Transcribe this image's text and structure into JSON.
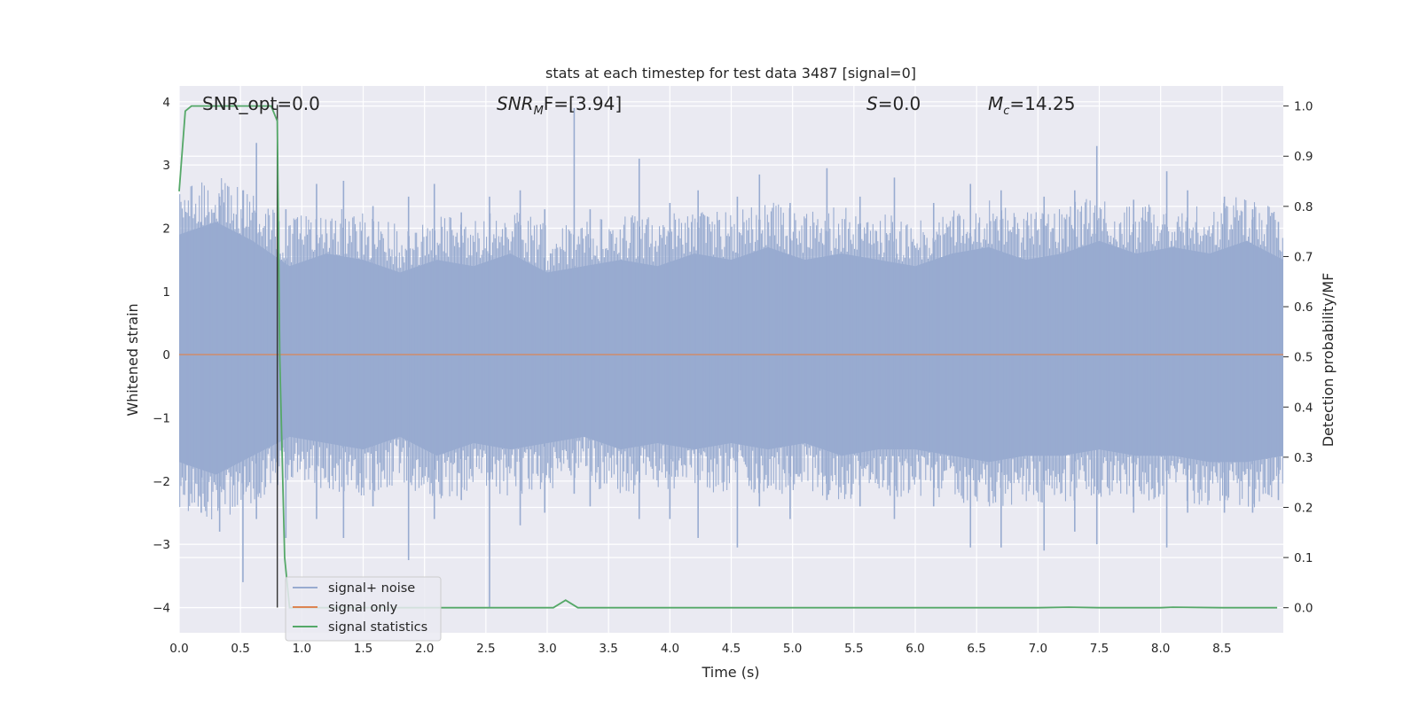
{
  "chart_data": {
    "type": "line",
    "title": "stats at each timestep for test data 3487 [signal=0]",
    "xlabel": "Time (s)",
    "ylabel_left": "Whitened strain",
    "ylabel_right": "Detection probability/MF",
    "xlim": [
      0.0,
      9.0
    ],
    "ylim_left": [
      -4.4,
      4.25
    ],
    "ylim_right": [
      -0.05,
      1.04
    ],
    "x_ticks": [
      "0.0",
      "0.5",
      "1.0",
      "1.5",
      "2.0",
      "2.5",
      "3.0",
      "3.5",
      "4.0",
      "4.5",
      "5.0",
      "5.5",
      "6.0",
      "6.5",
      "7.0",
      "7.5",
      "8.0",
      "8.5"
    ],
    "y_ticks_left": [
      "4",
      "3",
      "2",
      "1",
      "0",
      "−1",
      "−2",
      "−3",
      "−4"
    ],
    "y_ticks_right": [
      "1.0",
      "0.9",
      "0.8",
      "0.7",
      "0.6",
      "0.5",
      "0.4",
      "0.3",
      "0.2",
      "0.1",
      "0.0"
    ],
    "grid": true,
    "legend_position": "lower-left",
    "annotations": {
      "snr_opt": "SNR_opt=0.0",
      "snr_mf_base": "SNR",
      "snr_mf_sub": "M",
      "snr_mf_rest": "F=[3.94]",
      "s_base": "S",
      "s_rest": "=0.0",
      "mc_base": "M",
      "mc_sub": "c",
      "mc_rest": "=14.25"
    },
    "vline_x": 0.8,
    "series": [
      {
        "name": "signal+ noise",
        "color": "#98abd0",
        "axis": "left",
        "envelope_x": [
          0.0,
          0.3,
          0.6,
          0.9,
          1.2,
          1.5,
          1.8,
          2.1,
          2.4,
          2.7,
          3.0,
          3.3,
          3.6,
          3.9,
          4.2,
          4.5,
          4.8,
          5.1,
          5.4,
          5.7,
          6.0,
          6.3,
          6.6,
          6.9,
          7.2,
          7.5,
          7.8,
          8.1,
          8.4,
          8.7,
          9.0
        ],
        "envelope_upper": [
          1.9,
          2.1,
          1.8,
          1.4,
          1.6,
          1.5,
          1.3,
          1.5,
          1.4,
          1.6,
          1.3,
          1.4,
          1.5,
          1.4,
          1.6,
          1.5,
          1.7,
          1.5,
          1.6,
          1.5,
          1.4,
          1.6,
          1.7,
          1.5,
          1.6,
          1.8,
          1.6,
          1.7,
          1.6,
          1.8,
          1.5
        ],
        "envelope_lower": [
          -1.7,
          -1.9,
          -1.6,
          -1.3,
          -1.4,
          -1.5,
          -1.3,
          -1.6,
          -1.4,
          -1.5,
          -1.4,
          -1.3,
          -1.5,
          -1.4,
          -1.5,
          -1.4,
          -1.5,
          -1.4,
          -1.6,
          -1.5,
          -1.5,
          -1.6,
          -1.7,
          -1.6,
          -1.6,
          -1.5,
          -1.6,
          -1.6,
          -1.7,
          -1.7,
          -1.6
        ],
        "peaks_x": [
          0.18,
          0.33,
          0.52,
          0.63,
          0.87,
          1.12,
          1.34,
          1.58,
          1.87,
          2.08,
          2.3,
          2.53,
          2.78,
          2.98,
          3.22,
          3.35,
          3.75,
          4.0,
          4.23,
          4.55,
          4.73,
          4.98,
          5.28,
          5.55,
          5.83,
          6.15,
          6.45,
          6.7,
          7.05,
          7.3,
          7.48,
          7.78,
          8.05,
          8.22,
          8.52,
          8.75,
          8.96
        ],
        "peaks_high": [
          2.1,
          2.5,
          2.6,
          3.35,
          2.3,
          2.7,
          2.75,
          2.35,
          2.5,
          2.7,
          2.25,
          2.5,
          2.6,
          2.3,
          3.9,
          2.3,
          3.1,
          2.4,
          2.6,
          2.5,
          2.85,
          2.4,
          2.95,
          2.5,
          2.8,
          2.4,
          2.7,
          2.6,
          2.5,
          2.6,
          3.3,
          2.45,
          2.9,
          2.6,
          2.5,
          2.3,
          2.1
        ],
        "peaks_low": [
          -2.5,
          -2.8,
          -3.6,
          -2.6,
          -2.9,
          -2.6,
          -2.9,
          -2.4,
          -3.25,
          -2.6,
          -2.3,
          -4.0,
          -2.7,
          -2.5,
          -2.2,
          -2.4,
          -2.6,
          -2.6,
          -2.9,
          -3.05,
          -2.4,
          -2.6,
          -2.3,
          -2.4,
          -2.6,
          -2.4,
          -3.05,
          -3.05,
          -3.1,
          -2.8,
          -3.0,
          -2.5,
          -3.05,
          -2.5,
          -2.5,
          -2.5,
          -2.3
        ]
      },
      {
        "name": "signal only",
        "color": "#dd8452",
        "axis": "left",
        "x": [
          0.0,
          9.0
        ],
        "y": [
          0.0,
          0.0
        ]
      },
      {
        "name": "signal statistics",
        "color": "#55a868",
        "axis": "right",
        "x": [
          0.0,
          0.05,
          0.1,
          0.2,
          0.6,
          0.75,
          0.8,
          0.82,
          0.86,
          0.9,
          1.0,
          1.5,
          2.0,
          2.5,
          3.05,
          3.15,
          3.25,
          3.5,
          4.0,
          5.0,
          6.0,
          7.0,
          7.25,
          7.5,
          8.0,
          8.1,
          8.5,
          8.95
        ],
        "y": [
          0.83,
          0.99,
          1.0,
          1.0,
          1.0,
          1.0,
          0.97,
          0.5,
          0.1,
          0.0,
          0.0,
          0.0,
          0.0,
          0.0,
          0.0,
          0.015,
          0.0,
          0.0,
          0.0,
          0.0,
          0.0,
          0.0,
          0.001,
          0.0,
          0.0,
          0.001,
          0.0,
          0.0
        ]
      }
    ]
  }
}
